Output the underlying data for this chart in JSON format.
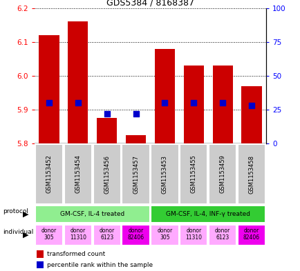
{
  "title": "GDS5384 / 8168387",
  "samples": [
    "GSM1153452",
    "GSM1153454",
    "GSM1153456",
    "GSM1153457",
    "GSM1153453",
    "GSM1153455",
    "GSM1153459",
    "GSM1153458"
  ],
  "transformed_count": [
    6.12,
    6.16,
    5.875,
    5.825,
    6.08,
    6.03,
    6.03,
    5.97
  ],
  "percentile_rank": [
    30,
    30,
    22,
    22,
    30,
    30,
    30,
    28
  ],
  "ymin": 5.8,
  "ymax": 6.2,
  "yticks": [
    5.8,
    5.9,
    6.0,
    6.1,
    6.2
  ],
  "y2ticks": [
    0,
    25,
    50,
    75,
    100
  ],
  "protocol_groups": [
    {
      "label": "GM-CSF, IL-4 treated",
      "start": 0,
      "end": 4,
      "color": "#90ee90"
    },
    {
      "label": "GM-CSF, IL-4, INF-γ treated",
      "start": 4,
      "end": 8,
      "color": "#33cc33"
    }
  ],
  "individuals": [
    "donor\n305",
    "donor\n11310",
    "donor\n6123",
    "donor\n82406",
    "donor\n305",
    "donor\n11310",
    "donor\n6123",
    "donor\n82406"
  ],
  "individual_colors": [
    "#ffaaff",
    "#ffaaff",
    "#ffaaff",
    "#ee00ee",
    "#ffaaff",
    "#ffaaff",
    "#ffaaff",
    "#ee00ee"
  ],
  "bar_color": "#cc0000",
  "dot_color": "#0000cc",
  "sample_bg": "#cccccc",
  "bar_width": 0.7,
  "dot_size": 30
}
